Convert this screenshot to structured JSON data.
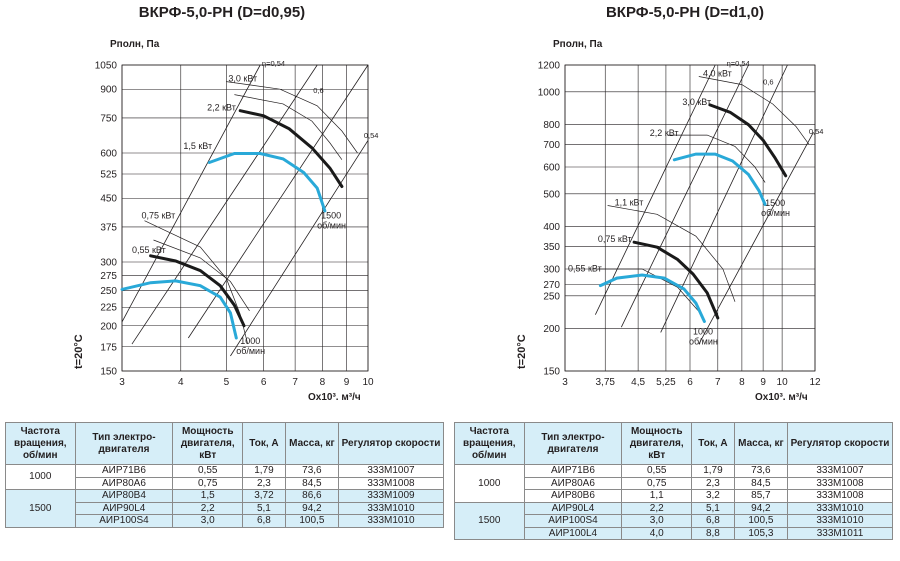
{
  "chart_data": [
    {
      "type": "line",
      "title": "ВКРФ-5,0-РН (D=d0,95)",
      "ylabel": "Pполн, Па",
      "xlabel": "Qx10³, м³/ч",
      "temperature_label": "t=20°C",
      "scale": "log-log",
      "x_ticks": [
        "3",
        "4",
        "5",
        "6",
        "7",
        "8",
        "9",
        "10"
      ],
      "y_ticks": [
        "150",
        "175",
        "200",
        "225",
        "250",
        "275",
        "300",
        "375",
        "450",
        "525",
        "600",
        "750",
        "900",
        "1050"
      ],
      "xlim": [
        3,
        10
      ],
      "ylim": [
        150,
        1050
      ],
      "speed_labels": [
        {
          "line1": "1000",
          "line2": "об/мин",
          "x": 5.35,
          "y": 178
        },
        {
          "line1": "1500",
          "line2": "об/мин",
          "x": 7.95,
          "y": 395
        }
      ],
      "series": [
        {
          "label": "0,55 кВт",
          "style": "black",
          "points": [
            [
              3.45,
              312
            ],
            [
              3.9,
              302
            ],
            [
              4.4,
              284
            ],
            [
              4.85,
              258
            ],
            [
              5.2,
              228
            ],
            [
              5.45,
              200
            ]
          ]
        },
        {
          "label": "0,75 кВт",
          "style": "blue",
          "points": [
            [
              3.0,
              252
            ],
            [
              3.45,
              263
            ],
            [
              3.9,
              266
            ],
            [
              4.4,
              258
            ],
            [
              4.85,
              240
            ],
            [
              5.1,
              217
            ],
            [
              5.25,
              185
            ]
          ]
        },
        {
          "label": "2,2 кВт",
          "style": "black",
          "points": [
            [
              5.35,
              785
            ],
            [
              6.0,
              760
            ],
            [
              6.8,
              700
            ],
            [
              7.6,
              620
            ],
            [
              8.3,
              545
            ],
            [
              8.8,
              485
            ]
          ]
        },
        {
          "label": "1,5 кВт",
          "style": "blue",
          "points": [
            [
              4.6,
              565
            ],
            [
              5.2,
              598
            ],
            [
              5.9,
              598
            ],
            [
              6.6,
              578
            ],
            [
              7.3,
              530
            ],
            [
              7.8,
              480
            ],
            [
              8.1,
              415
            ]
          ]
        }
      ],
      "power_labels": [
        {
          "text": "3,0 кВт",
          "x": 5.05,
          "y": 945
        },
        {
          "text": "2,2 кВт",
          "x": 4.55,
          "y": 785
        },
        {
          "text": "1,5 кВт",
          "x": 4.05,
          "y": 615
        },
        {
          "text": "0,75 кВт",
          "x": 3.3,
          "y": 395
        },
        {
          "text": "0,55 кВт",
          "x": 3.15,
          "y": 318
        }
      ],
      "efficiency_labels": [
        {
          "text": "η=0,54",
          "x": 5.95,
          "y": 1045
        },
        {
          "text": "0,6",
          "x": 7.65,
          "y": 880
        },
        {
          "text": "0,54",
          "x": 9.8,
          "y": 660
        }
      ],
      "system_lines": [
        [
          [
            3.0,
            205
          ],
          [
            5.9,
            1050
          ]
        ],
        [
          [
            3.15,
            178
          ],
          [
            7.8,
            1050
          ]
        ],
        [
          [
            4.15,
            185
          ],
          [
            10,
            1050
          ]
        ],
        [
          [
            5.1,
            165
          ],
          [
            10,
            650
          ]
        ]
      ],
      "efficiency_curves": [
        {
          "points": [
            [
              3.35,
              390
            ],
            [
              4.4,
              330
            ],
            [
              5.0,
              270
            ],
            [
              5.35,
              215
            ],
            [
              5.55,
              178
            ]
          ]
        },
        {
          "points": [
            [
              3.5,
              345
            ],
            [
              4.4,
              308
            ],
            [
              5.1,
              265
            ],
            [
              5.6,
              220
            ]
          ]
        },
        {
          "points": [
            [
              5.0,
              945
            ],
            [
              6.5,
              900
            ],
            [
              7.8,
              810
            ],
            [
              8.8,
              690
            ],
            [
              9.5,
              600
            ]
          ]
        },
        {
          "points": [
            [
              5.2,
              870
            ],
            [
              6.6,
              820
            ],
            [
              7.6,
              735
            ],
            [
              8.3,
              640
            ],
            [
              8.8,
              575
            ]
          ]
        }
      ]
    },
    {
      "type": "line",
      "title": "ВКРФ-5,0-РН (D=d1,0)",
      "ylabel": "Pполн, Па",
      "xlabel": "Qx10³, м³/ч",
      "temperature_label": "t=20°C",
      "scale": "log-log",
      "x_ticks": [
        "3",
        "3,75",
        "4,5",
        "5,25",
        "6",
        "7",
        "8",
        "9",
        "10",
        "12"
      ],
      "y_ticks": [
        "150",
        "200",
        "250",
        "270",
        "300",
        "350",
        "400",
        "500",
        "600",
        "700",
        "800",
        "1000",
        "1200"
      ],
      "xlim": [
        3,
        12
      ],
      "ylim": [
        150,
        1200
      ],
      "speed_labels": [
        {
          "line1": "1000",
          "line2": "об/мин",
          "x": 6.1,
          "y": 192
        },
        {
          "line1": "1500",
          "line2": "об/мин",
          "x": 9.1,
          "y": 460
        }
      ],
      "series": [
        {
          "label": "0,75 кВт",
          "style": "black",
          "points": [
            [
              4.4,
              360
            ],
            [
              5.0,
              348
            ],
            [
              5.6,
              320
            ],
            [
              6.1,
              290
            ],
            [
              6.6,
              255
            ],
            [
              7.0,
              215
            ]
          ]
        },
        {
          "label": "0,55 кВт",
          "style": "blue",
          "points": [
            [
              3.65,
              268
            ],
            [
              4.0,
              282
            ],
            [
              4.6,
              288
            ],
            [
              5.2,
              282
            ],
            [
              5.8,
              262
            ],
            [
              6.2,
              238
            ],
            [
              6.5,
              210
            ]
          ]
        },
        {
          "label": "3,0 кВт",
          "style": "black",
          "points": [
            [
              6.7,
              915
            ],
            [
              7.5,
              870
            ],
            [
              8.3,
              800
            ],
            [
              9.0,
              720
            ],
            [
              9.6,
              640
            ],
            [
              10.2,
              565
            ]
          ]
        },
        {
          "label": "2,2 кВт",
          "style": "blue",
          "points": [
            [
              5.5,
              630
            ],
            [
              6.2,
              655
            ],
            [
              6.9,
              655
            ],
            [
              7.6,
              625
            ],
            [
              8.3,
              570
            ],
            [
              8.8,
              510
            ],
            [
              9.1,
              465
            ]
          ]
        }
      ],
      "power_labels": [
        {
          "text": "4,0 кВт",
          "x": 6.45,
          "y": 1110
        },
        {
          "text": "3,0 кВт",
          "x": 5.75,
          "y": 915
        },
        {
          "text": "2,2 кВт",
          "x": 4.8,
          "y": 740
        },
        {
          "text": "1,1 кВт",
          "x": 3.95,
          "y": 462
        },
        {
          "text": "0,75 кВт",
          "x": 3.6,
          "y": 360
        },
        {
          "text": "0,55 кВт",
          "x": 3.05,
          "y": 295
        }
      ],
      "efficiency_labels": [
        {
          "text": "η=0,54",
          "x": 7.35,
          "y": 1190
        },
        {
          "text": "0,6",
          "x": 9.0,
          "y": 1050
        },
        {
          "text": "0,54",
          "x": 11.6,
          "y": 750
        }
      ],
      "system_lines": [
        [
          [
            3.55,
            220
          ],
          [
            6.9,
            1200
          ]
        ],
        [
          [
            4.1,
            202
          ],
          [
            8.3,
            1200
          ]
        ],
        [
          [
            5.1,
            195
          ],
          [
            10.3,
            1200
          ]
        ],
        [
          [
            6.3,
            180
          ],
          [
            11.9,
            760
          ]
        ]
      ],
      "efficiency_curves": [
        {
          "points": [
            [
              3.8,
              462
            ],
            [
              5.0,
              435
            ],
            [
              6.2,
              375
            ],
            [
              7.2,
              300
            ],
            [
              7.7,
              240
            ]
          ]
        },
        {
          "points": [
            [
              3.6,
              300
            ],
            [
              4.6,
              300
            ],
            [
              5.6,
              265
            ],
            [
              6.4,
              220
            ]
          ]
        },
        {
          "points": [
            [
              6.3,
              1110
            ],
            [
              8.0,
              1050
            ],
            [
              9.5,
              920
            ],
            [
              10.8,
              790
            ],
            [
              11.6,
              700
            ]
          ]
        },
        {
          "points": [
            [
              5.3,
              745
            ],
            [
              6.6,
              745
            ],
            [
              7.7,
              690
            ],
            [
              8.6,
              600
            ],
            [
              9.1,
              540
            ]
          ]
        }
      ]
    }
  ],
  "tables": [
    {
      "headers": [
        "Частота вращения, об/мин",
        "Тип электро-двигателя",
        "Мощность двигателя, кВт",
        "Ток, А",
        "Масса, кг",
        "Регулятор скорости"
      ],
      "groups": [
        {
          "speed": "1000",
          "rows": [
            [
              "АИР71В6",
              "0,55",
              "1,79",
              "73,6",
              "333М1007"
            ],
            [
              "АИР80А6",
              "0,75",
              "2,3",
              "84,5",
              "333М1008"
            ]
          ]
        },
        {
          "speed": "1500",
          "rows": [
            [
              "АИР80В4",
              "1,5",
              "3,72",
              "86,6",
              "333М1009"
            ],
            [
              "АИР90L4",
              "2,2",
              "5,1",
              "94,2",
              "333М1010"
            ],
            [
              "АИР100S4",
              "3,0",
              "6,8",
              "100,5",
              "333М1010"
            ]
          ]
        }
      ]
    },
    {
      "headers": [
        "Частота вращения, об/мин",
        "Тип электро-двигателя",
        "Мощность двигателя, кВт",
        "Ток, А",
        "Масса, кг",
        "Регулятор скорости"
      ],
      "groups": [
        {
          "speed": "1000",
          "rows": [
            [
              "АИР71В6",
              "0,55",
              "1,79",
              "73,6",
              "333М1007"
            ],
            [
              "АИР80А6",
              "0,75",
              "2,3",
              "84,5",
              "333М1008"
            ],
            [
              "АИР80В6",
              "1,1",
              "3,2",
              "85,7",
              "333М1008"
            ]
          ]
        },
        {
          "speed": "1500",
          "rows": [
            [
              "АИР90L4",
              "2,2",
              "5,1",
              "94,2",
              "333М1010"
            ],
            [
              "АИР100S4",
              "3,0",
              "6,8",
              "100,5",
              "333М1010"
            ],
            [
              "АИР100L4",
              "4,0",
              "8,8",
              "105,3",
              "333М1011"
            ]
          ]
        }
      ]
    }
  ],
  "colors": {
    "blue": "#29a9d8",
    "black": "#1a1a1a",
    "grid": "#231f20",
    "header_bg": "#d6eef8"
  }
}
